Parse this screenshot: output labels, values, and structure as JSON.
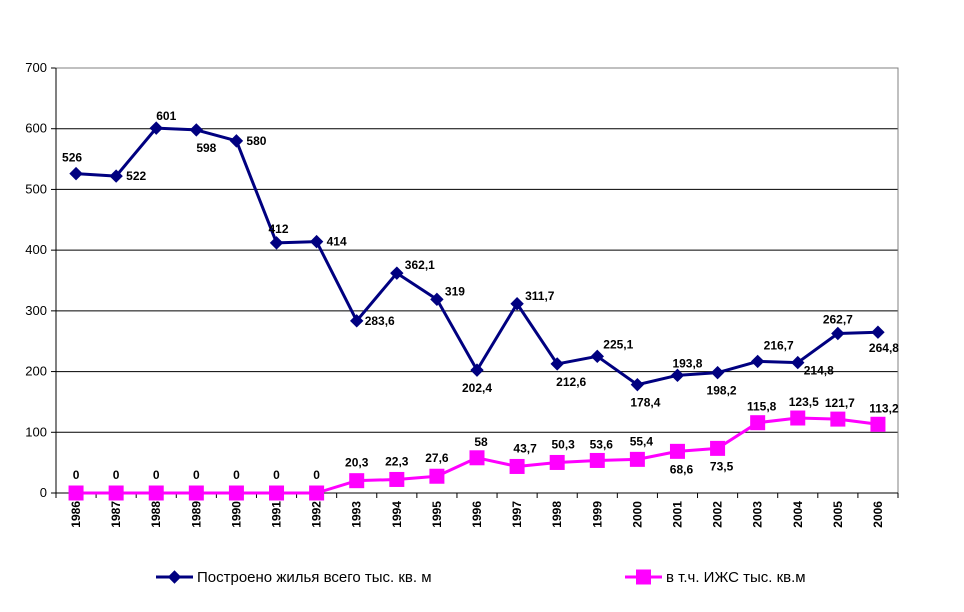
{
  "chart_data": {
    "type": "line",
    "title": "",
    "xlabel": "",
    "ylabel": "",
    "ylim": [
      0,
      700
    ],
    "yticks": [
      0,
      100,
      200,
      300,
      400,
      500,
      600,
      700
    ],
    "grid": true,
    "legend_position": "bottom",
    "categories": [
      "1986",
      "1987",
      "1988",
      "1989",
      "1990",
      "1991",
      "1992",
      "1993",
      "1994",
      "1995",
      "1996",
      "1997",
      "1998",
      "1999",
      "2000",
      "2001",
      "2002",
      "2003",
      "2004",
      "2005",
      "2006"
    ],
    "series": [
      {
        "name": "Построено жилья всего тыс. кв. м",
        "color": "#000080",
        "marker": "diamond",
        "values": [
          526,
          522,
          601,
          598,
          580,
          412,
          414,
          283.6,
          362.1,
          319,
          202.4,
          311.7,
          212.6,
          225.1,
          178.4,
          193.8,
          198.2,
          216.7,
          214.8,
          262.7,
          264.8
        ],
        "labels": [
          "526",
          "522",
          "601",
          "598",
          "580",
          "412",
          "414",
          "283,6",
          "362,1",
          "319",
          "202,4",
          "311,7",
          "212,6",
          "225,1",
          "178,4",
          "193,8",
          "198,2",
          "216,7",
          "214,8",
          "262,7",
          "264,8"
        ]
      },
      {
        "name": "в т.ч. ИЖС тыс. кв.м",
        "color": "#ff00ff",
        "marker": "square",
        "values": [
          0,
          0,
          0,
          0,
          0,
          0,
          0,
          20.3,
          22.3,
          27.6,
          58,
          43.7,
          50.3,
          53.6,
          55.4,
          68.6,
          73.5,
          115.8,
          123.5,
          121.7,
          113.2
        ],
        "labels": [
          "0",
          "0",
          "0",
          "0",
          "0",
          "0",
          "0",
          "20,3",
          "22,3",
          "27,6",
          "58",
          "43,7",
          "50,3",
          "53,6",
          "55,4",
          "68,6",
          "73,5",
          "115,8",
          "123,5",
          "121,7",
          "113,2"
        ]
      }
    ]
  }
}
